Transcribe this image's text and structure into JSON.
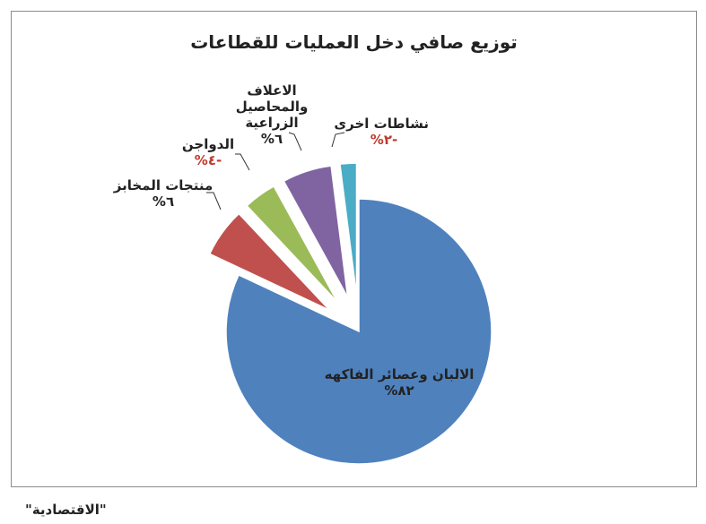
{
  "chart_data": {
    "type": "pie",
    "title": "توزيع صافي دخل العمليات للقطاعات",
    "slices": [
      {
        "label": "الالبان وعصائر الفاكهه",
        "value": 82,
        "value_label": "٨٢%",
        "color": "#4f81bd",
        "exploded": false
      },
      {
        "label": "منتجات المخابز",
        "value": 6,
        "value_label": "٦%",
        "color": "#c0504d",
        "exploded": true
      },
      {
        "label": "الدواجن",
        "value": 4,
        "value_label": "-٤%",
        "color": "#9bbb59",
        "exploded": true
      },
      {
        "label": "الاعلاف والمحاصيل الزراعية",
        "value": 6,
        "value_label": "٦%",
        "color": "#8064a2",
        "exploded": true
      },
      {
        "label": "نشاطات اخرى",
        "value": 2,
        "value_label": "-٢%",
        "color": "#4bacc6",
        "exploded": true
      }
    ],
    "legend": "none"
  },
  "source": "\"الاقتصادية\""
}
